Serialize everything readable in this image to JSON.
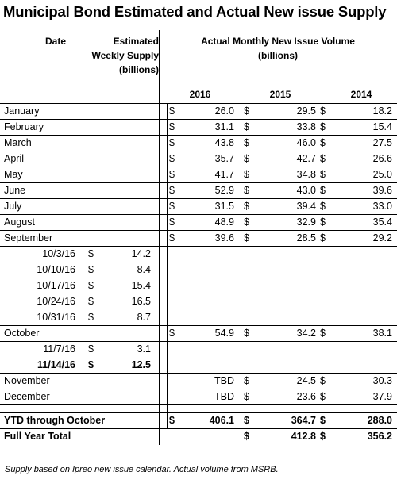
{
  "title": "Municipal Bond Estimated and Actual New issue Supply",
  "headers": {
    "date": "Date",
    "estimated": [
      "Estimated",
      "Weekly Supply",
      "(billions)"
    ],
    "actual": [
      "Actual Monthly New Issue Volume",
      "(billions)"
    ],
    "years": [
      "2016",
      "2015",
      "2014"
    ]
  },
  "currency_symbol": "$",
  "months_a": [
    {
      "label": "January",
      "v2016": "26.0",
      "v2015": "29.5",
      "v2014": "18.2"
    },
    {
      "label": "February",
      "v2016": "31.1",
      "v2015": "33.8",
      "v2014": "15.4"
    },
    {
      "label": "March",
      "v2016": "43.8",
      "v2015": "46.0",
      "v2014": "27.5"
    },
    {
      "label": "April",
      "v2016": "35.7",
      "v2015": "42.7",
      "v2014": "26.6"
    },
    {
      "label": "May",
      "v2016": "41.7",
      "v2015": "34.8",
      "v2014": "25.0"
    },
    {
      "label": "June",
      "v2016": "52.9",
      "v2015": "43.0",
      "v2014": "39.6"
    },
    {
      "label": "July",
      "v2016": "31.5",
      "v2015": "39.4",
      "v2014": "33.0"
    },
    {
      "label": "August",
      "v2016": "48.9",
      "v2015": "32.9",
      "v2014": "35.4"
    },
    {
      "label": "September",
      "v2016": "39.6",
      "v2015": "28.5",
      "v2014": "29.2"
    }
  ],
  "weeks_oct": [
    {
      "label": "10/3/16",
      "est": "14.2"
    },
    {
      "label": "10/10/16",
      "est": "8.4"
    },
    {
      "label": "10/17/16",
      "est": "15.4"
    },
    {
      "label": "10/24/16",
      "est": "16.5"
    },
    {
      "label": "10/31/16",
      "est": "8.7"
    }
  ],
  "october": {
    "label": "October",
    "v2016": "54.9",
    "v2015": "34.2",
    "v2014": "38.1"
  },
  "weeks_nov": [
    {
      "label": "11/7/16",
      "est": "3.1",
      "bold": false
    },
    {
      "label": "11/14/16",
      "est": "12.5",
      "bold": true
    }
  ],
  "months_b": [
    {
      "label": "November",
      "v2016": "TBD",
      "v2015": "24.5",
      "v2014": "30.3"
    },
    {
      "label": "December",
      "v2016": "TBD",
      "v2015": "23.6",
      "v2014": "37.9"
    }
  ],
  "ytd": {
    "label": "YTD through October",
    "v2016": "406.1",
    "v2015": "364.7",
    "v2014": "288.0"
  },
  "full": {
    "label": "Full Year Total",
    "v2015": "412.8",
    "v2014": "356.2"
  },
  "note": "Supply based on Ipreo new issue calendar. Actual volume from MSRB."
}
